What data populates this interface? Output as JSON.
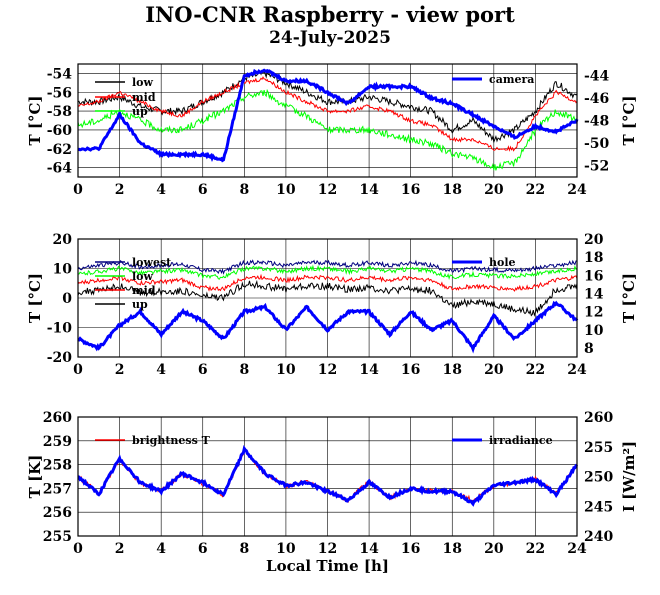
{
  "header": {
    "title": "INO-CNR Raspberry - view port",
    "subtitle": "24-July-2025"
  },
  "chart_data": [
    {
      "type": "line",
      "panel": "top",
      "x": [
        0,
        1,
        2,
        3,
        4,
        5,
        6,
        7,
        8,
        9,
        10,
        11,
        12,
        13,
        14,
        15,
        16,
        17,
        18,
        19,
        20,
        21,
        22,
        23,
        24
      ],
      "xlim": [
        0,
        24
      ],
      "xticks": [
        0,
        2,
        4,
        6,
        8,
        10,
        12,
        14,
        16,
        18,
        20,
        22,
        24
      ],
      "ylabel": "T [°C]",
      "ylim": [
        -65,
        -53
      ],
      "yticks": [
        -64,
        -62,
        -60,
        -58,
        -56,
        -54
      ],
      "ylabel_right": "T [°C]",
      "ylim_right": [
        -53,
        -43
      ],
      "yticks_right": [
        -52,
        -50,
        -48,
        -46,
        -44
      ],
      "grid": true,
      "series": [
        {
          "name": "low",
          "color": "#000000",
          "axis": "left",
          "values": [
            -57,
            -57,
            -56.5,
            -57.5,
            -58,
            -58,
            -57,
            -56,
            -54.5,
            -54,
            -55,
            -56,
            -57,
            -57,
            -56.5,
            -57,
            -57.5,
            -58,
            -60,
            -59,
            -61,
            -60,
            -58,
            -55,
            -56.5
          ]
        },
        {
          "name": "mid",
          "color": "#ff0000",
          "axis": "left",
          "values": [
            -57.5,
            -57,
            -56,
            -57,
            -58,
            -58.5,
            -57,
            -56,
            -55,
            -54.5,
            -56,
            -57,
            -58,
            -58,
            -57.5,
            -58,
            -59,
            -59.5,
            -61,
            -61,
            -62,
            -62,
            -58.5,
            -56,
            -57
          ]
        },
        {
          "name": "up",
          "color": "#00ff00",
          "axis": "left",
          "values": [
            -59.5,
            -59,
            -58,
            -59,
            -60,
            -60,
            -59,
            -58,
            -56.5,
            -56,
            -57.5,
            -58.5,
            -60,
            -60,
            -60,
            -60.5,
            -61,
            -61.5,
            -62.5,
            -63,
            -64,
            -63.5,
            -60,
            -58,
            -59
          ]
        },
        {
          "name": "camera",
          "color": "#0000ff",
          "axis": "right",
          "values": [
            -50.5,
            -50.5,
            -47.5,
            -50,
            -51,
            -51,
            -51,
            -51.5,
            -44,
            -43.5,
            -44.5,
            -44.5,
            -45.5,
            -46.5,
            -45,
            -45,
            -45,
            -46,
            -46.5,
            -47.5,
            -48.5,
            -49.5,
            -48.5,
            -49,
            -48
          ]
        }
      ]
    },
    {
      "type": "line",
      "panel": "middle",
      "x": [
        0,
        1,
        2,
        3,
        4,
        5,
        6,
        7,
        8,
        9,
        10,
        11,
        12,
        13,
        14,
        15,
        16,
        17,
        18,
        19,
        20,
        21,
        22,
        23,
        24
      ],
      "xlim": [
        0,
        24
      ],
      "xticks": [
        0,
        2,
        4,
        6,
        8,
        10,
        12,
        14,
        16,
        18,
        20,
        22,
        24
      ],
      "ylabel": "T [°C]",
      "ylim": [
        -20,
        20
      ],
      "yticks": [
        -20,
        -10,
        0,
        10,
        20
      ],
      "ylabel_right": "T [°C]",
      "ylim_right": [
        7,
        20
      ],
      "yticks_right": [
        8,
        10,
        12,
        14,
        16,
        18,
        20
      ],
      "grid": true,
      "series": [
        {
          "name": "lowest",
          "color": "#000080",
          "axis": "left",
          "values": [
            10,
            11,
            12,
            10.5,
            11,
            11.5,
            9.5,
            9,
            12,
            12,
            11,
            12,
            12,
            11,
            12,
            11,
            12,
            11,
            9,
            10,
            9.5,
            9.5,
            10,
            11,
            12
          ]
        },
        {
          "name": "low",
          "color": "#00ff00",
          "axis": "left",
          "values": [
            8,
            9,
            10,
            8.5,
            9,
            9.5,
            7.5,
            7,
            10,
            10,
            9,
            10,
            10,
            9,
            10,
            9,
            10,
            9,
            7,
            8,
            7.5,
            7.5,
            8,
            9,
            10
          ]
        },
        {
          "name": "mid",
          "color": "#ff0000",
          "axis": "left",
          "values": [
            5,
            6,
            7,
            5,
            5.5,
            6,
            3.5,
            3,
            7,
            7,
            6,
            7,
            7,
            6,
            7,
            6,
            7,
            6,
            3,
            4,
            3.5,
            3,
            4,
            6,
            7
          ]
        },
        {
          "name": "up",
          "color": "#000000",
          "axis": "left",
          "values": [
            2,
            2.5,
            4,
            2,
            2,
            2.5,
            0.5,
            0,
            5,
            4,
            3,
            4,
            4,
            3,
            3.5,
            2.5,
            3,
            2.5,
            -3,
            -1,
            -2,
            -4,
            -5,
            3,
            4
          ]
        },
        {
          "name": "hole",
          "color": "#0000ff",
          "axis": "right",
          "values": [
            9,
            8,
            10.5,
            12,
            9.5,
            12,
            11,
            9,
            12,
            12.5,
            10,
            12.5,
            10,
            12,
            12,
            9.5,
            12,
            10,
            11,
            8,
            11.5,
            9,
            11,
            13,
            11
          ]
        }
      ]
    },
    {
      "type": "line",
      "panel": "bottom",
      "x": [
        0,
        1,
        2,
        3,
        4,
        5,
        6,
        7,
        8,
        9,
        10,
        11,
        12,
        13,
        14,
        15,
        16,
        17,
        18,
        19,
        20,
        21,
        22,
        23,
        24
      ],
      "xlim": [
        0,
        24
      ],
      "xticks": [
        0,
        2,
        4,
        6,
        8,
        10,
        12,
        14,
        16,
        18,
        20,
        22,
        24
      ],
      "xlabel": "Local Time [h]",
      "ylabel": "T [K]",
      "ylim": [
        255,
        260
      ],
      "yticks": [
        255,
        256,
        257,
        258,
        259,
        260
      ],
      "ylabel_right": "I [W/m²]",
      "ylim_right": [
        240,
        260
      ],
      "yticks_right": [
        240,
        245,
        250,
        255,
        260
      ],
      "grid": true,
      "series": [
        {
          "name": "brightness T",
          "color": "#ff0000",
          "axis": "left",
          "values": [
            257.5,
            256.8,
            258.2,
            257.2,
            256.9,
            257.6,
            257.2,
            256.7,
            258.6,
            257.6,
            257.1,
            257.3,
            256.9,
            256.5,
            257.3,
            256.6,
            257.0,
            256.9,
            256.9,
            256.5,
            257.1,
            257.2,
            257.4,
            256.8,
            258.0
          ]
        },
        {
          "name": "irradiance",
          "color": "#0000ff",
          "axis": "right",
          "values": [
            250,
            247,
            253,
            249,
            247.5,
            250.5,
            249,
            247,
            254.5,
            250.5,
            248.5,
            249,
            247.5,
            246,
            249,
            246.5,
            248,
            247.5,
            247.5,
            245.5,
            248.5,
            249,
            249.5,
            247,
            252
          ]
        }
      ]
    }
  ]
}
